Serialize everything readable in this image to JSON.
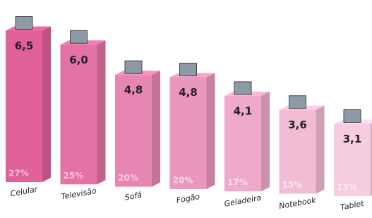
{
  "chart_data": {
    "type": "bar3d",
    "categories": [
      "Celular",
      "Televisão",
      "Sofá",
      "Fogão",
      "Geladeira",
      "Notebook",
      "Tablet"
    ],
    "values": [
      6.5,
      6.0,
      4.8,
      4.8,
      4.1,
      3.6,
      3.1
    ],
    "value_labels": [
      "6,5",
      "6,0",
      "4,8",
      "4,8",
      "4,1",
      "3,6",
      "3,1"
    ],
    "shares": [
      27,
      25,
      20,
      20,
      17,
      15,
      13
    ],
    "share_labels": [
      "27%",
      "25%",
      "20%",
      "20%",
      "17%",
      "15%",
      "13%"
    ],
    "colors": [
      "#e0609a",
      "#e373a6",
      "#e886b3",
      "#eb97bd",
      "#efa9c9",
      "#f3bcd5",
      "#f6cce0"
    ]
  }
}
